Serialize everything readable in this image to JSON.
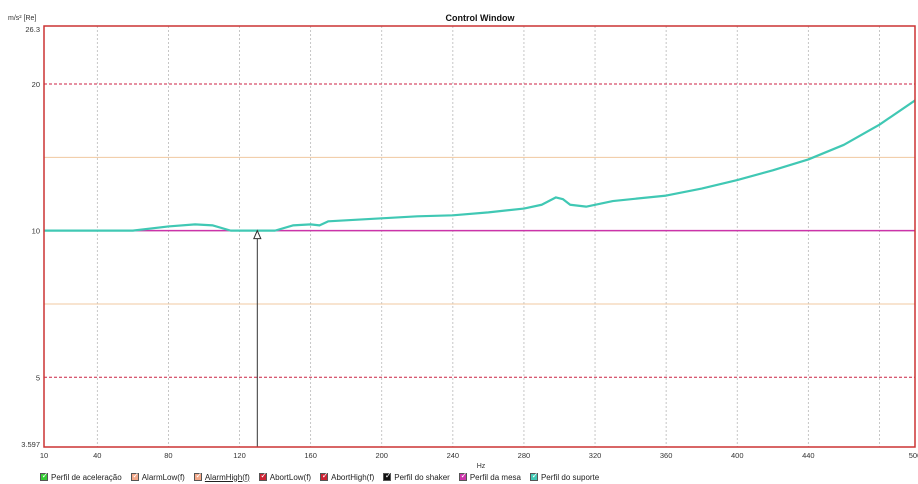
{
  "chart_data": {
    "type": "line",
    "title": "Control Window",
    "ylabel": "m/s² [Re]",
    "xlabel": "Hz",
    "x_scale": "linear",
    "y_scale": "log",
    "xlim": [
      10,
      500
    ],
    "ylim": [
      3.597,
      26.3
    ],
    "x_ticks": [
      10,
      40,
      80,
      120,
      160,
      200,
      240,
      280,
      320,
      360,
      400,
      440,
      500
    ],
    "x_tick_labels": [
      "10",
      "40",
      "80",
      "120",
      "160",
      "200",
      "240",
      "280",
      "320",
      "360",
      "400",
      "440",
      "500"
    ],
    "y_ticks": [
      3.597,
      5,
      10,
      20,
      26.3
    ],
    "y_tick_labels": [
      "3.597",
      "5",
      "10",
      "20",
      "26.3"
    ],
    "x_grid": [
      40,
      80,
      120,
      160,
      200,
      240,
      280,
      320,
      360,
      400,
      440,
      480
    ],
    "grid": true,
    "legend_position": "bottom",
    "cursor_x": 130,
    "series": [
      {
        "name": "Perfil de aceleração",
        "color": "#33cc33",
        "style": "solid",
        "x": [
          10,
          500
        ],
        "y": [
          10,
          10
        ]
      },
      {
        "name": "AlarmLow(f)",
        "color": "#f0c8a0",
        "style": "solid",
        "x": [
          10,
          500
        ],
        "y": [
          7.07,
          7.07
        ]
      },
      {
        "name": "AlarmHigh(f)",
        "color": "#f0c8a0",
        "style": "solid",
        "x": [
          10,
          500
        ],
        "y": [
          14.14,
          14.14
        ]
      },
      {
        "name": "AbortLow(f)",
        "color": "#cc2244",
        "style": "dashed",
        "x": [
          10,
          500
        ],
        "y": [
          5,
          5
        ]
      },
      {
        "name": "AbortHigh(f)",
        "color": "#cc2244",
        "style": "dashed",
        "x": [
          10,
          500
        ],
        "y": [
          20,
          20
        ]
      },
      {
        "name": "Perfil do shaker",
        "color": "#111111",
        "style": "solid",
        "x": [],
        "y": []
      },
      {
        "name": "Perfil da mesa",
        "color": "#cc33aa",
        "style": "solid",
        "x": [
          10,
          60,
          100,
          140,
          180,
          220,
          260,
          300,
          340,
          380,
          420,
          460,
          500
        ],
        "y": [
          10.0,
          10.0,
          10.0,
          10.0,
          10.0,
          10.0,
          10.0,
          10.0,
          10.0,
          10.0,
          10.0,
          10.0,
          10.0
        ]
      },
      {
        "name": "Perfil do suporte",
        "color": "#40c8b4",
        "style": "solid",
        "x": [
          10,
          40,
          60,
          80,
          95,
          105,
          115,
          120,
          130,
          140,
          150,
          160,
          165,
          170,
          180,
          200,
          220,
          240,
          260,
          280,
          290,
          298,
          302,
          306,
          315,
          330,
          360,
          380,
          400,
          420,
          440,
          460,
          480,
          500
        ],
        "y": [
          10.0,
          10.0,
          10.0,
          10.2,
          10.3,
          10.25,
          10.0,
          10.0,
          10.0,
          10.0,
          10.25,
          10.3,
          10.25,
          10.45,
          10.5,
          10.6,
          10.7,
          10.75,
          10.9,
          11.1,
          11.3,
          11.7,
          11.6,
          11.3,
          11.2,
          11.5,
          11.8,
          12.2,
          12.7,
          13.3,
          14.0,
          15.0,
          16.5,
          18.5
        ]
      }
    ]
  },
  "legend_items": [
    {
      "label": "Perfil de aceleração",
      "color": "#33cc33",
      "underlined": false
    },
    {
      "label": "AlarmLow(f)",
      "color": "#f3a98a",
      "underlined": false
    },
    {
      "label": "AlarmHigh(f)",
      "color": "#f3a98a",
      "underlined": true
    },
    {
      "label": "AbortLow(f)",
      "color": "#cc2233",
      "underlined": false
    },
    {
      "label": "AbortHigh(f)",
      "color": "#cc2233",
      "underlined": false
    },
    {
      "label": "Perfil do shaker",
      "color": "#111111",
      "underlined": false
    },
    {
      "label": "Perfil da mesa",
      "color": "#cc33aa",
      "underlined": false
    },
    {
      "label": "Perfil do suporte",
      "color": "#40c8b4",
      "underlined": false
    }
  ]
}
